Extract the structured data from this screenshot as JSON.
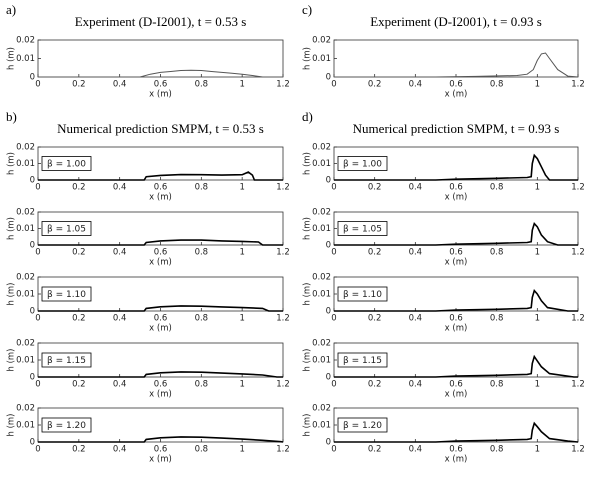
{
  "chart_data": [
    {
      "type": "line",
      "panel_label": "a)",
      "title": "Experiment (D-I2001), t = 0.53 s",
      "xlabel": "x (m)",
      "ylabel": "h (m)",
      "x": [
        0,
        0.5,
        0.55,
        0.6,
        0.65,
        0.7,
        0.75,
        0.8,
        0.85,
        0.9,
        0.95,
        1.0,
        1.05,
        1.1,
        1.2
      ],
      "series": [
        {
          "color": "#555555",
          "values": [
            0,
            0,
            0.0015,
            0.0025,
            0.003,
            0.0035,
            0.0037,
            0.0035,
            0.003,
            0.0025,
            0.002,
            0.0015,
            0.0008,
            0,
            0
          ]
        }
      ],
      "xlim": [
        0,
        1.2
      ],
      "xticks": [
        0,
        0.2,
        0.4,
        0.6,
        0.8,
        1,
        1.2
      ],
      "ylim": [
        0,
        0.02
      ],
      "yticks": [
        0,
        0.01,
        0.02
      ]
    },
    {
      "type": "line",
      "panel_label": "b)",
      "title": "Numerical prediction SMPM, t = 0.53 s",
      "annotation": "β = 1.00",
      "xlabel": "x (m)",
      "ylabel": "h (m)",
      "x": [
        0,
        0.52,
        0.53,
        0.6,
        0.7,
        0.8,
        0.9,
        1.0,
        1.03,
        1.05,
        1.06,
        1.2
      ],
      "series": [
        {
          "color": "#000000",
          "values": [
            0,
            0,
            0.002,
            0.0028,
            0.0033,
            0.0032,
            0.003,
            0.0032,
            0.0048,
            0.003,
            0,
            0
          ]
        }
      ],
      "xlim": [
        0,
        1.2
      ],
      "xticks": [
        0,
        0.2,
        0.4,
        0.6,
        0.8,
        1,
        1.2
      ],
      "ylim": [
        0,
        0.02
      ],
      "yticks": [
        0,
        0.01,
        0.02
      ]
    },
    {
      "type": "line",
      "annotation": "β = 1.05",
      "xlabel": "x (m)",
      "ylabel": "h (m)",
      "x": [
        0,
        0.52,
        0.53,
        0.6,
        0.7,
        0.8,
        0.9,
        1.0,
        1.08,
        1.1,
        1.2
      ],
      "series": [
        {
          "color": "#000000",
          "values": [
            0,
            0,
            0.0015,
            0.0025,
            0.003,
            0.003,
            0.0025,
            0.0022,
            0.0018,
            0,
            0
          ]
        }
      ],
      "xlim": [
        0,
        1.2
      ],
      "xticks": [
        0,
        0.2,
        0.4,
        0.6,
        0.8,
        1,
        1.2
      ],
      "ylim": [
        0,
        0.02
      ],
      "yticks": [
        0,
        0.01,
        0.02
      ]
    },
    {
      "type": "line",
      "annotation": "β = 1.10",
      "xlabel": "x (m)",
      "ylabel": "h (m)",
      "x": [
        0,
        0.52,
        0.53,
        0.6,
        0.7,
        0.8,
        0.9,
        1.0,
        1.1,
        1.13,
        1.2
      ],
      "series": [
        {
          "color": "#000000",
          "values": [
            0,
            0,
            0.0015,
            0.0025,
            0.003,
            0.0028,
            0.0024,
            0.002,
            0.0015,
            0,
            0
          ]
        }
      ],
      "xlim": [
        0,
        1.2
      ],
      "xticks": [
        0,
        0.2,
        0.4,
        0.6,
        0.8,
        1,
        1.2
      ],
      "ylim": [
        0,
        0.02
      ],
      "yticks": [
        0,
        0.01,
        0.02
      ]
    },
    {
      "type": "line",
      "annotation": "β = 1.15",
      "xlabel": "x (m)",
      "ylabel": "h (m)",
      "x": [
        0,
        0.52,
        0.53,
        0.6,
        0.7,
        0.8,
        0.9,
        1.0,
        1.1,
        1.17,
        1.2
      ],
      "series": [
        {
          "color": "#000000",
          "values": [
            0,
            0,
            0.0015,
            0.0025,
            0.003,
            0.0028,
            0.0023,
            0.0018,
            0.0012,
            0,
            0
          ]
        }
      ],
      "xlim": [
        0,
        1.2
      ],
      "xticks": [
        0,
        0.2,
        0.4,
        0.6,
        0.8,
        1,
        1.2
      ],
      "ylim": [
        0,
        0.02
      ],
      "yticks": [
        0,
        0.01,
        0.02
      ]
    },
    {
      "type": "line",
      "annotation": "β = 1.20",
      "xlabel": "x (m)",
      "ylabel": "h (m)",
      "x": [
        0,
        0.52,
        0.53,
        0.6,
        0.7,
        0.8,
        0.9,
        1.0,
        1.1,
        1.19,
        1.2
      ],
      "series": [
        {
          "color": "#000000",
          "values": [
            0,
            0,
            0.0015,
            0.0025,
            0.003,
            0.0028,
            0.0023,
            0.0017,
            0.001,
            0.0002,
            0
          ]
        }
      ],
      "xlim": [
        0,
        1.2
      ],
      "xticks": [
        0,
        0.2,
        0.4,
        0.6,
        0.8,
        1,
        1.2
      ],
      "ylim": [
        0,
        0.02
      ],
      "yticks": [
        0,
        0.01,
        0.02
      ]
    },
    {
      "type": "line",
      "panel_label": "c)",
      "title": "Experiment (D-I2001), t = 0.93 s",
      "xlabel": "x (m)",
      "ylabel": "h (m)",
      "x": [
        0,
        0.5,
        0.7,
        0.9,
        0.95,
        0.98,
        1.0,
        1.02,
        1.04,
        1.06,
        1.1,
        1.15,
        1.2
      ],
      "series": [
        {
          "color": "#555555",
          "values": [
            0,
            0,
            0.0003,
            0.0008,
            0.0015,
            0.004,
            0.009,
            0.0125,
            0.013,
            0.01,
            0.004,
            0.0005,
            0
          ]
        }
      ],
      "xlim": [
        0,
        1.2
      ],
      "xticks": [
        0,
        0.2,
        0.4,
        0.6,
        0.8,
        1,
        1.2
      ],
      "ylim": [
        0,
        0.02
      ],
      "yticks": [
        0,
        0.01,
        0.02
      ]
    },
    {
      "type": "line",
      "panel_label": "d)",
      "title": "Numerical prediction SMPM, t = 0.93 s",
      "annotation": "β = 1.00",
      "xlabel": "x (m)",
      "ylabel": "h (m)",
      "x": [
        0,
        0.5,
        0.6,
        0.8,
        0.95,
        0.97,
        0.975,
        0.985,
        1.0,
        1.02,
        1.04,
        1.06,
        1.2
      ],
      "series": [
        {
          "color": "#000000",
          "values": [
            0,
            0,
            0.0005,
            0.001,
            0.0015,
            0.002,
            0.01,
            0.015,
            0.013,
            0.008,
            0.003,
            0,
            0
          ]
        }
      ],
      "xlim": [
        0,
        1.2
      ],
      "xticks": [
        0,
        0.2,
        0.4,
        0.6,
        0.8,
        1,
        1.2
      ],
      "ylim": [
        0,
        0.02
      ],
      "yticks": [
        0,
        0.01,
        0.02
      ]
    },
    {
      "type": "line",
      "annotation": "β = 1.05",
      "xlabel": "x (m)",
      "ylabel": "h (m)",
      "x": [
        0,
        0.5,
        0.6,
        0.8,
        0.95,
        0.97,
        0.975,
        0.985,
        1.0,
        1.02,
        1.05,
        1.1,
        1.2
      ],
      "series": [
        {
          "color": "#000000",
          "values": [
            0,
            0,
            0.0005,
            0.001,
            0.0015,
            0.002,
            0.009,
            0.013,
            0.011,
            0.006,
            0.002,
            0,
            0
          ]
        }
      ],
      "xlim": [
        0,
        1.2
      ],
      "xticks": [
        0,
        0.2,
        0.4,
        0.6,
        0.8,
        1,
        1.2
      ],
      "ylim": [
        0,
        0.02
      ],
      "yticks": [
        0,
        0.01,
        0.02
      ]
    },
    {
      "type": "line",
      "annotation": "β = 1.10",
      "xlabel": "x (m)",
      "ylabel": "h (m)",
      "x": [
        0,
        0.5,
        0.6,
        0.8,
        0.95,
        0.97,
        0.975,
        0.985,
        1.0,
        1.02,
        1.05,
        1.15,
        1.2
      ],
      "series": [
        {
          "color": "#000000",
          "values": [
            0,
            0,
            0.0005,
            0.001,
            0.0015,
            0.002,
            0.008,
            0.012,
            0.01,
            0.006,
            0.002,
            0,
            0
          ]
        }
      ],
      "xlim": [
        0,
        1.2
      ],
      "xticks": [
        0,
        0.2,
        0.4,
        0.6,
        0.8,
        1,
        1.2
      ],
      "ylim": [
        0,
        0.02
      ],
      "yticks": [
        0,
        0.01,
        0.02
      ]
    },
    {
      "type": "line",
      "annotation": "β = 1.15",
      "xlabel": "x (m)",
      "ylabel": "h (m)",
      "x": [
        0,
        0.5,
        0.6,
        0.8,
        0.95,
        0.97,
        0.975,
        0.985,
        1.0,
        1.02,
        1.06,
        1.18,
        1.2
      ],
      "series": [
        {
          "color": "#000000",
          "values": [
            0,
            0,
            0.0005,
            0.001,
            0.0015,
            0.002,
            0.008,
            0.012,
            0.0095,
            0.006,
            0.002,
            0,
            0
          ]
        }
      ],
      "xlim": [
        0,
        1.2
      ],
      "xticks": [
        0,
        0.2,
        0.4,
        0.6,
        0.8,
        1,
        1.2
      ],
      "ylim": [
        0,
        0.02
      ],
      "yticks": [
        0,
        0.01,
        0.02
      ]
    },
    {
      "type": "line",
      "annotation": "β = 1.20",
      "xlabel": "x (m)",
      "ylabel": "h (m)",
      "x": [
        0,
        0.5,
        0.6,
        0.8,
        0.95,
        0.97,
        0.975,
        0.985,
        1.0,
        1.02,
        1.06,
        1.15,
        1.2
      ],
      "series": [
        {
          "color": "#000000",
          "values": [
            0,
            0,
            0.0005,
            0.001,
            0.0015,
            0.002,
            0.007,
            0.011,
            0.009,
            0.006,
            0.002,
            0.0005,
            0
          ]
        }
      ],
      "xlim": [
        0,
        1.2
      ],
      "xticks": [
        0,
        0.2,
        0.4,
        0.6,
        0.8,
        1,
        1.2
      ],
      "ylim": [
        0,
        0.02
      ],
      "yticks": [
        0,
        0.01,
        0.02
      ]
    }
  ]
}
